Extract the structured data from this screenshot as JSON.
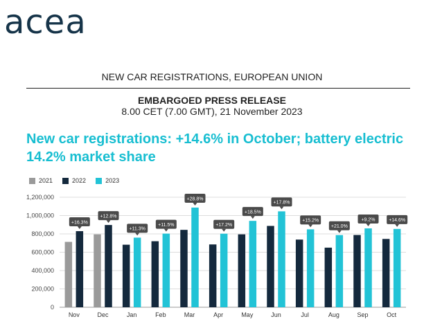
{
  "logo_text": "acea",
  "header": {
    "category": "NEW CAR REGISTRATIONS, EUROPEAN UNION",
    "embargo": "EMBARGOED PRESS RELEASE",
    "datetime": "8.00 CET (7.00 GMT), 21 November 2023"
  },
  "headline": "New car registrations: +14.6% in October; battery electric 14.2% market share",
  "colors": {
    "y2021": "#9a9a9a",
    "y2022": "#14293d",
    "y2023": "#22c3d6",
    "label_bg": "#4a4a4a"
  },
  "chart_data": {
    "type": "bar",
    "categories": [
      "Nov",
      "Dec",
      "Jan",
      "Feb",
      "Mar",
      "Apr",
      "May",
      "Jun",
      "Jul",
      "Aug",
      "Sep",
      "Oct"
    ],
    "series": [
      {
        "name": "2021",
        "values": [
          713000,
          795000,
          null,
          null,
          null,
          null,
          null,
          null,
          null,
          null,
          null,
          null
        ]
      },
      {
        "name": "2022",
        "values": [
          830000,
          897000,
          682000,
          720000,
          844000,
          685000,
          795000,
          887000,
          738000,
          650000,
          788000,
          745000
        ]
      },
      {
        "name": "2023",
        "values": [
          null,
          null,
          759000,
          803000,
          1087000,
          802000,
          942000,
          1046000,
          850000,
          787000,
          860000,
          854000
        ]
      }
    ],
    "change_labels": [
      "+16.3%",
      "+12.8%",
      "+11.3%",
      "+11.5%",
      "+28.8%",
      "+17.2%",
      "+18.5%",
      "+17.8%",
      "+15.2%",
      "+21.0%",
      "+9.2%",
      "+14.6%"
    ],
    "y_ticks": [
      "0",
      "200,000",
      "400,000",
      "600,000",
      "800,000",
      "1,000,000",
      "1,200,000"
    ],
    "ylim": [
      0,
      1200000
    ],
    "legend": [
      "2021",
      "2022",
      "2023"
    ],
    "legend_position": "top-left",
    "grid": true
  }
}
